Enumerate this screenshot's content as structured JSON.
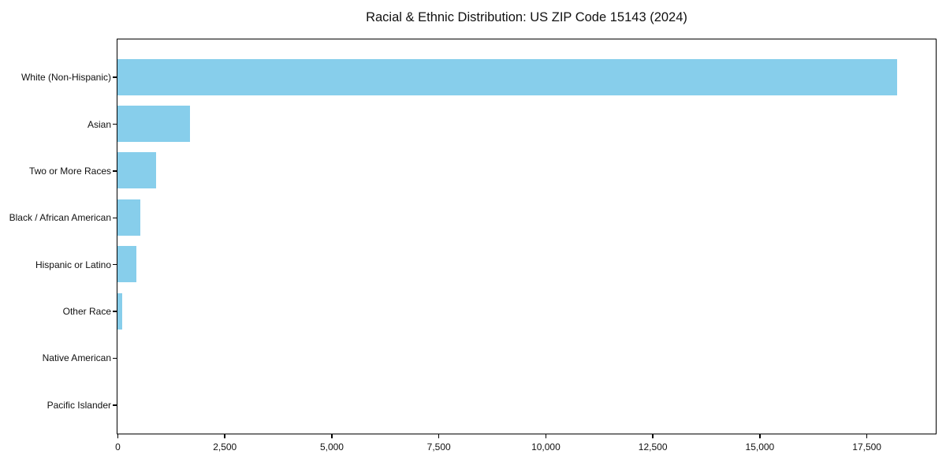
{
  "chart_data": {
    "type": "bar",
    "orientation": "horizontal",
    "title": "Racial & Ethnic Distribution: US ZIP Code 15143 (2024)",
    "categories": [
      "White (Non-Hispanic)",
      "Asian",
      "Two or More Races",
      "Black / African American",
      "Hispanic or Latino",
      "Other Race",
      "Native American",
      "Pacific Islander"
    ],
    "values": [
      18200,
      1700,
      900,
      530,
      440,
      115,
      0,
      0
    ],
    "xlabel": "",
    "ylabel": "",
    "xlim": [
      0,
      19100
    ],
    "x_ticks": [
      0,
      2500,
      5000,
      7500,
      10000,
      12500,
      15000,
      17500
    ],
    "x_tick_labels": [
      "0",
      "2,500",
      "5,000",
      "7,500",
      "10,000",
      "12,500",
      "15,000",
      "17,500"
    ],
    "bar_color": "#87CEEB",
    "axis_color": "#000000",
    "background": "#ffffff",
    "grid": false,
    "legend": false
  }
}
